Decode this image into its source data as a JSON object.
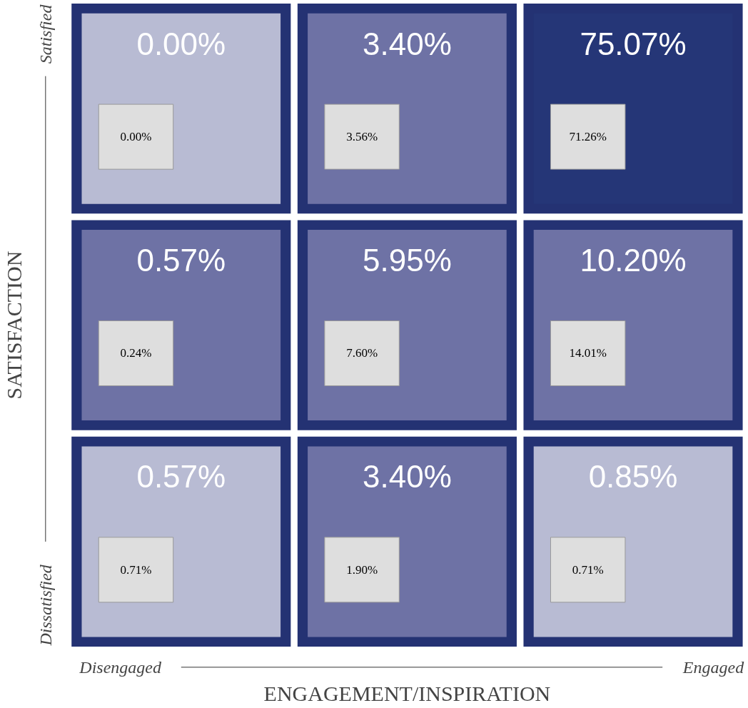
{
  "chart_data": {
    "type": "heatmap",
    "xlabel": "ENGAGEMENT/INSPIRATION",
    "ylabel": "SATISFACTION",
    "categories": [
      "Disengaged",
      null,
      "Engaged"
    ],
    "y_categories": [
      "Satisfied",
      null,
      "Dissatisfied"
    ],
    "cells": [
      [
        0.0,
        3.4,
        75.07
      ],
      [
        0.57,
        5.95,
        10.2
      ],
      [
        0.57,
        3.4,
        0.85
      ]
    ],
    "cell_labels": [
      [
        "0.00%",
        "3.40%",
        "75.07%"
      ],
      [
        "0.57%",
        "5.95%",
        "10.20%"
      ],
      [
        "0.57%",
        "3.40%",
        "0.85%"
      ]
    ],
    "colors": [
      [
        "#b8bbd3",
        "#6e72a5",
        "#253677"
      ],
      [
        "#6e72a5",
        "#6e72a5",
        "#6e72a5"
      ],
      [
        "#b8bbd3",
        "#6e72a5",
        "#b8bbd3"
      ]
    ],
    "annotations": [
      "0.00%",
      "3.56%",
      "71.26%",
      "0.24%",
      "7.60%",
      "14.01%",
      "0.71%",
      "1.90%",
      "0.71%"
    ]
  }
}
